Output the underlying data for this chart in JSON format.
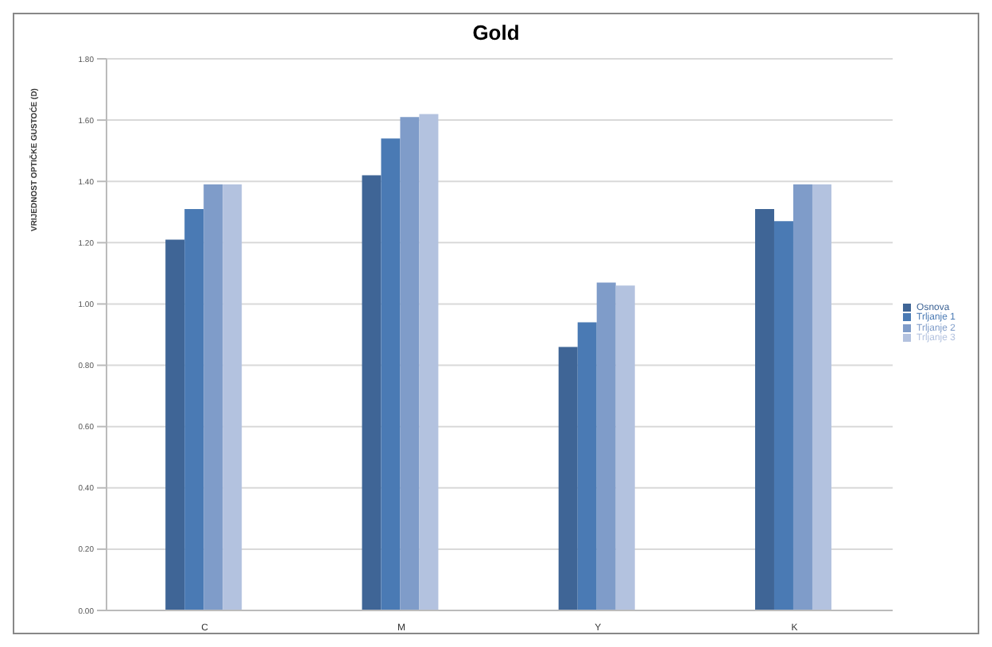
{
  "chart_data": {
    "type": "bar",
    "title": "Gold",
    "ylabel": "VRIJEDNOST OPTIČKE GUSTOĆE (D)",
    "categories": [
      "C",
      "M",
      "Y",
      "K"
    ],
    "series": [
      {
        "name": "Osnova",
        "color": "#3f6596",
        "values": [
          1.21,
          1.42,
          0.86,
          1.31
        ]
      },
      {
        "name": "Trljanje 1",
        "color": "#4a7ab4",
        "values": [
          1.31,
          1.54,
          0.94,
          1.27
        ]
      },
      {
        "name": "Trljanje 2",
        "color": "#7f9cc9",
        "values": [
          1.39,
          1.61,
          1.07,
          1.39
        ]
      },
      {
        "name": "Trljanje 3",
        "color": "#b3c2df",
        "values": [
          1.39,
          1.62,
          1.06,
          1.39
        ]
      }
    ],
    "ylim": [
      0,
      1.8
    ],
    "yticks": [
      {
        "value": 0,
        "label": "0.00"
      },
      {
        "value": 0.2,
        "label": "0.20"
      },
      {
        "value": 0.4,
        "label": "0.40"
      },
      {
        "value": 0.6,
        "label": "0.60"
      },
      {
        "value": 0.8,
        "label": "0.80"
      },
      {
        "value": 1,
        "label": "1.00"
      },
      {
        "value": 1.2,
        "label": "1.20"
      },
      {
        "value": 1.4,
        "label": "1.40"
      },
      {
        "value": 1.6,
        "label": "1.60"
      },
      {
        "value": 1.8,
        "label": "1.80"
      }
    ],
    "grid": "y",
    "legend": "right"
  }
}
